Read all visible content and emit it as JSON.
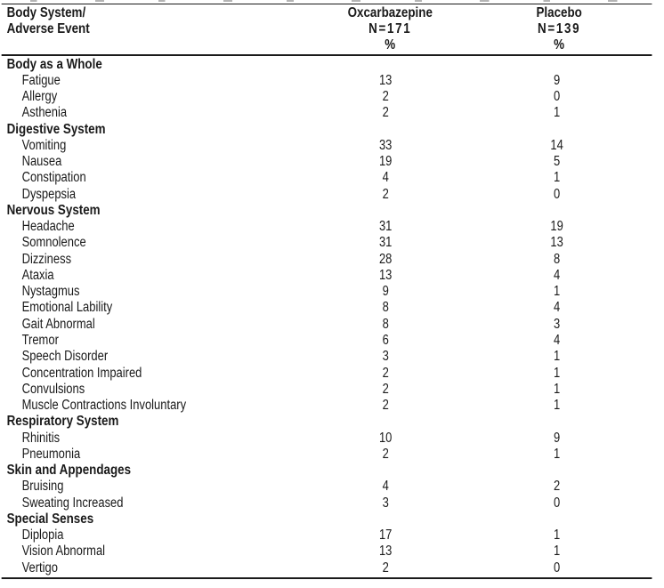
{
  "page": {
    "background_color": "#ffffff",
    "text_color": "#1a1a1a",
    "rule_color": "#1a1a1a"
  },
  "table": {
    "header": {
      "col1": [
        "Body System/",
        "Adverse Event"
      ],
      "col2": [
        "Oxcarbazepine",
        "N=171",
        "%"
      ],
      "col3": [
        "Placebo",
        "N=139",
        "%"
      ]
    },
    "sections": [
      {
        "name": "Body as a Whole",
        "rows": [
          {
            "event": "Fatigue",
            "oxcarbazepine_pct": "13",
            "placebo_pct": "9"
          },
          {
            "event": "Allergy",
            "oxcarbazepine_pct": "2",
            "placebo_pct": "0"
          },
          {
            "event": "Asthenia",
            "oxcarbazepine_pct": "2",
            "placebo_pct": "1"
          }
        ]
      },
      {
        "name": "Digestive System",
        "rows": [
          {
            "event": "Vomiting",
            "oxcarbazepine_pct": "33",
            "placebo_pct": "14"
          },
          {
            "event": "Nausea",
            "oxcarbazepine_pct": "19",
            "placebo_pct": "5"
          },
          {
            "event": "Constipation",
            "oxcarbazepine_pct": "4",
            "placebo_pct": "1"
          },
          {
            "event": "Dyspepsia",
            "oxcarbazepine_pct": "2",
            "placebo_pct": "0"
          }
        ]
      },
      {
        "name": "Nervous System",
        "rows": [
          {
            "event": "Headache",
            "oxcarbazepine_pct": "31",
            "placebo_pct": "19"
          },
          {
            "event": "Somnolence",
            "oxcarbazepine_pct": "31",
            "placebo_pct": "13"
          },
          {
            "event": "Dizziness",
            "oxcarbazepine_pct": "28",
            "placebo_pct": "8"
          },
          {
            "event": "Ataxia",
            "oxcarbazepine_pct": "13",
            "placebo_pct": "4"
          },
          {
            "event": "Nystagmus",
            "oxcarbazepine_pct": "9",
            "placebo_pct": "1"
          },
          {
            "event": "Emotional Lability",
            "oxcarbazepine_pct": "8",
            "placebo_pct": "4"
          },
          {
            "event": "Gait Abnormal",
            "oxcarbazepine_pct": "8",
            "placebo_pct": "3"
          },
          {
            "event": "Tremor",
            "oxcarbazepine_pct": "6",
            "placebo_pct": "4"
          },
          {
            "event": "Speech Disorder",
            "oxcarbazepine_pct": "3",
            "placebo_pct": "1"
          },
          {
            "event": "Concentration Impaired",
            "oxcarbazepine_pct": "2",
            "placebo_pct": "1"
          },
          {
            "event": "Convulsions",
            "oxcarbazepine_pct": "2",
            "placebo_pct": "1"
          },
          {
            "event": "Muscle Contractions Involuntary",
            "oxcarbazepine_pct": "2",
            "placebo_pct": "1"
          }
        ]
      },
      {
        "name": "Respiratory System",
        "rows": [
          {
            "event": "Rhinitis",
            "oxcarbazepine_pct": "10",
            "placebo_pct": "9"
          },
          {
            "event": "Pneumonia",
            "oxcarbazepine_pct": "2",
            "placebo_pct": "1"
          }
        ]
      },
      {
        "name": "Skin and Appendages",
        "rows": [
          {
            "event": "Bruising",
            "oxcarbazepine_pct": "4",
            "placebo_pct": "2"
          },
          {
            "event": "Sweating Increased",
            "oxcarbazepine_pct": "3",
            "placebo_pct": "0"
          }
        ]
      },
      {
        "name": "Special Senses",
        "rows": [
          {
            "event": "Diplopia",
            "oxcarbazepine_pct": "17",
            "placebo_pct": "1"
          },
          {
            "event": "Vision Abnormal",
            "oxcarbazepine_pct": "13",
            "placebo_pct": "1"
          },
          {
            "event": "Vertigo",
            "oxcarbazepine_pct": "2",
            "placebo_pct": "0"
          }
        ]
      }
    ]
  }
}
